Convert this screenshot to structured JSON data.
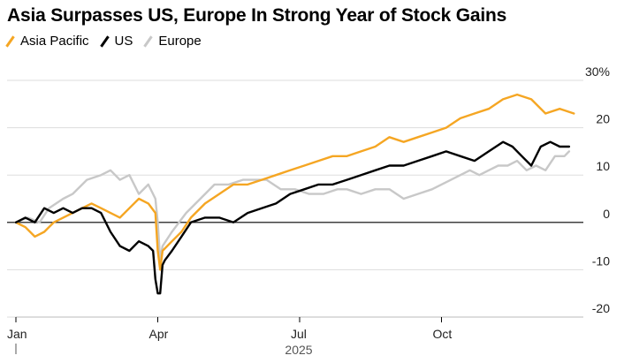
{
  "chart_data": {
    "type": "line",
    "title": "Asia Surpasses US, Europe In Strong Year of Stock Gains",
    "x_tick_labels": [
      "Jan",
      "Apr",
      "Jul",
      "Oct"
    ],
    "x_axis_year": "2025",
    "y_tick_labels": [
      "30%",
      "20",
      "10",
      "0",
      "-10",
      "-20"
    ],
    "y_ticks": [
      30,
      20,
      10,
      0,
      -10,
      -20
    ],
    "ylim": [
      -20,
      30
    ],
    "xlim": [
      0,
      12
    ],
    "grid": true,
    "legend_position": "top-left",
    "series": [
      {
        "name": "Europe",
        "color": "#c8c8c8",
        "x": [
          0,
          0.25,
          0.5,
          0.7,
          1.0,
          1.2,
          1.5,
          1.8,
          2.0,
          2.2,
          2.4,
          2.6,
          2.8,
          2.95,
          3.0,
          3.05,
          3.1,
          3.3,
          3.6,
          3.9,
          4.2,
          4.5,
          4.8,
          5.0,
          5.3,
          5.6,
          5.9,
          6.2,
          6.5,
          6.8,
          7.0,
          7.3,
          7.6,
          7.9,
          8.2,
          8.5,
          8.8,
          9.0,
          9.2,
          9.4,
          9.6,
          9.8,
          10.0,
          10.2,
          10.4,
          10.6,
          10.8,
          11.0,
          11.2,
          11.4,
          11.6,
          11.7
        ],
        "values": [
          0,
          1,
          0,
          3,
          5,
          6,
          9,
          10,
          11,
          9,
          10,
          6,
          8,
          5,
          0,
          -8,
          -5,
          -2,
          2,
          5,
          8,
          8,
          9,
          9,
          9,
          7,
          7,
          6,
          6,
          7,
          7,
          6,
          7,
          7,
          5,
          6,
          7,
          8,
          9,
          10,
          11,
          10,
          11,
          12,
          12,
          13,
          11,
          12,
          11,
          14,
          14,
          15
        ]
      },
      {
        "name": "Asia Pacific",
        "color": "#f5a623",
        "x": [
          0,
          0.2,
          0.4,
          0.6,
          0.8,
          1.0,
          1.2,
          1.4,
          1.6,
          1.8,
          2.0,
          2.2,
          2.4,
          2.6,
          2.8,
          2.95,
          3.0,
          3.05,
          3.1,
          3.3,
          3.5,
          3.7,
          4.0,
          4.3,
          4.6,
          4.9,
          5.2,
          5.5,
          5.8,
          6.1,
          6.4,
          6.7,
          7.0,
          7.3,
          7.6,
          7.9,
          8.2,
          8.5,
          8.8,
          9.1,
          9.4,
          9.7,
          10.0,
          10.3,
          10.6,
          10.9,
          11.2,
          11.5,
          11.8
        ],
        "values": [
          0,
          -1,
          -3,
          -2,
          0,
          1,
          2,
          3,
          4,
          3,
          2,
          1,
          3,
          5,
          4,
          2,
          -6,
          -10,
          -6,
          -4,
          -2,
          1,
          4,
          6,
          8,
          8,
          9,
          10,
          11,
          12,
          13,
          14,
          14,
          15,
          16,
          18,
          17,
          18,
          19,
          20,
          22,
          23,
          24,
          26,
          27,
          26,
          23,
          24,
          23
        ]
      },
      {
        "name": "US",
        "color": "#000000",
        "x": [
          0,
          0.2,
          0.4,
          0.6,
          0.8,
          1.0,
          1.2,
          1.4,
          1.6,
          1.8,
          2.0,
          2.2,
          2.4,
          2.6,
          2.8,
          2.9,
          2.95,
          3.0,
          3.05,
          3.1,
          3.15,
          3.3,
          3.5,
          3.7,
          4.0,
          4.3,
          4.6,
          4.9,
          5.2,
          5.5,
          5.8,
          6.1,
          6.4,
          6.7,
          7.0,
          7.3,
          7.6,
          7.9,
          8.2,
          8.5,
          8.8,
          9.1,
          9.4,
          9.7,
          10.0,
          10.3,
          10.5,
          10.7,
          10.9,
          11.1,
          11.3,
          11.5,
          11.7
        ],
        "values": [
          0,
          1,
          0,
          3,
          2,
          3,
          2,
          3,
          3,
          2,
          -2,
          -5,
          -6,
          -4,
          -5,
          -6,
          -12,
          -15,
          -15,
          -9,
          -8,
          -6,
          -3,
          0,
          1,
          1,
          0,
          2,
          3,
          4,
          6,
          7,
          8,
          8,
          9,
          10,
          11,
          12,
          12,
          13,
          14,
          15,
          14,
          13,
          15,
          17,
          16,
          14,
          12,
          16,
          17,
          16,
          16
        ]
      }
    ]
  }
}
